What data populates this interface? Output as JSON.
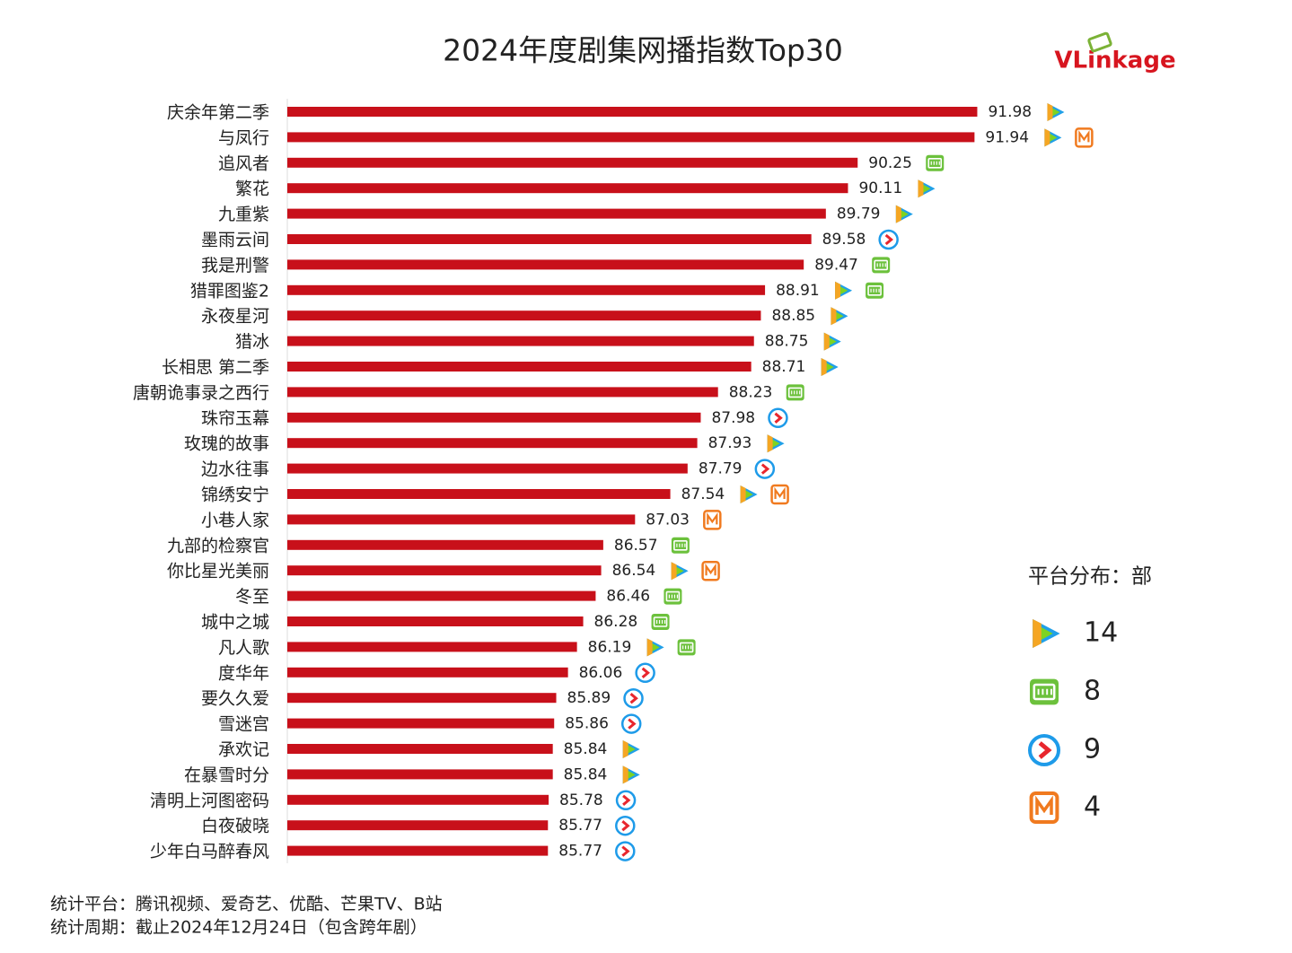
{
  "chart_data": {
    "type": "bar",
    "orientation": "horizontal",
    "title": "2024年度剧集网播指数Top30",
    "logo": "VLinkage",
    "categories": [
      "庆余年第二季",
      "与凤行",
      "追风者",
      "繁花",
      "九重紫",
      "墨雨云间",
      "我是刑警",
      "猎罪图鉴2",
      "永夜星河",
      "猎冰",
      "长相思 第二季",
      "唐朝诡事录之西行",
      "珠帘玉幕",
      "玫瑰的故事",
      "边水往事",
      "锦绣安宁",
      "小巷人家",
      "九部的检察官",
      "你比星光美丽",
      "冬至",
      "城中之城",
      "凡人歌",
      "度华年",
      "要久久爱",
      "雪迷宫",
      "承欢记",
      "在暴雪时分",
      "清明上河图密码",
      "白夜破晓",
      "少年白马醉春风"
    ],
    "values": [
      91.98,
      91.94,
      90.25,
      90.11,
      89.79,
      89.58,
      89.47,
      88.91,
      88.85,
      88.75,
      88.71,
      88.23,
      87.98,
      87.93,
      87.79,
      87.54,
      87.03,
      86.57,
      86.54,
      86.46,
      86.28,
      86.19,
      86.06,
      85.89,
      85.86,
      85.84,
      85.84,
      85.78,
      85.77,
      85.77
    ],
    "color": "#c8101a",
    "xlim": [
      82,
      92
    ],
    "platforms": [
      [
        0
      ],
      [
        0,
        3
      ],
      [
        1
      ],
      [
        0
      ],
      [
        0
      ],
      [
        2
      ],
      [
        1
      ],
      [
        0,
        1
      ],
      [
        0
      ],
      [
        0
      ],
      [
        0
      ],
      [
        1
      ],
      [
        2
      ],
      [
        0
      ],
      [
        2
      ],
      [
        0,
        3
      ],
      [
        3
      ],
      [
        1
      ],
      [
        0,
        3
      ],
      [
        1
      ],
      [
        1
      ],
      [
        0,
        1
      ],
      [
        2
      ],
      [
        2
      ],
      [
        2
      ],
      [
        0
      ],
      [
        0
      ],
      [
        2
      ],
      [
        2
      ],
      [
        2
      ]
    ],
    "platform_legend": {
      "title": "平台分布：部",
      "counts": [
        14,
        8,
        9,
        4
      ]
    },
    "footnotes": [
      "统计平台：腾讯视频、爱奇艺、优酷、芒果TV、B站",
      "统计周期：截止2024年12月24日（包含跨年剧）"
    ]
  }
}
